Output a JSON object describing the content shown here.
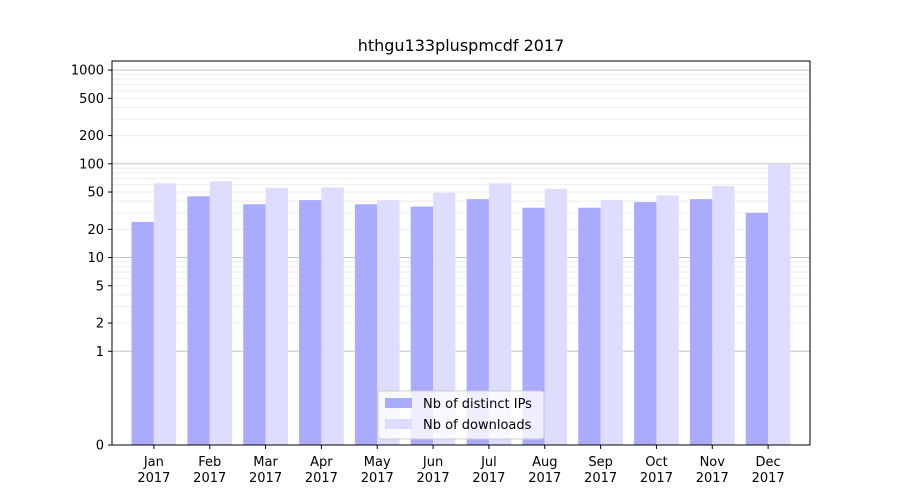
{
  "chart_data": {
    "type": "bar",
    "title": "hthgu133pluspmcdf 2017",
    "xlabel": "",
    "ylabel": "",
    "y_scale": "symlog",
    "y_tick_labels": [
      "0",
      "1",
      "2",
      "5",
      "10",
      "20",
      "50",
      "100",
      "200",
      "500",
      "1000"
    ],
    "ylim": [
      0,
      1250
    ],
    "grid": true,
    "legend_position": "bottom-center",
    "categories": [
      {
        "month": "Jan",
        "year": "2017"
      },
      {
        "month": "Feb",
        "year": "2017"
      },
      {
        "month": "Mar",
        "year": "2017"
      },
      {
        "month": "Apr",
        "year": "2017"
      },
      {
        "month": "May",
        "year": "2017"
      },
      {
        "month": "Jun",
        "year": "2017"
      },
      {
        "month": "Jul",
        "year": "2017"
      },
      {
        "month": "Aug",
        "year": "2017"
      },
      {
        "month": "Sep",
        "year": "2017"
      },
      {
        "month": "Oct",
        "year": "2017"
      },
      {
        "month": "Nov",
        "year": "2017"
      },
      {
        "month": "Dec",
        "year": "2017"
      }
    ],
    "series": [
      {
        "name": "Nb of distinct IPs",
        "color": "#aaaaff",
        "values": [
          24,
          45,
          37,
          41,
          37,
          35,
          42,
          34,
          34,
          39,
          42,
          30
        ]
      },
      {
        "name": "Nb of downloads",
        "color": "#ddddff",
        "values": [
          62,
          65,
          55,
          56,
          41,
          49,
          62,
          54,
          41,
          46,
          58,
          100
        ]
      }
    ]
  }
}
